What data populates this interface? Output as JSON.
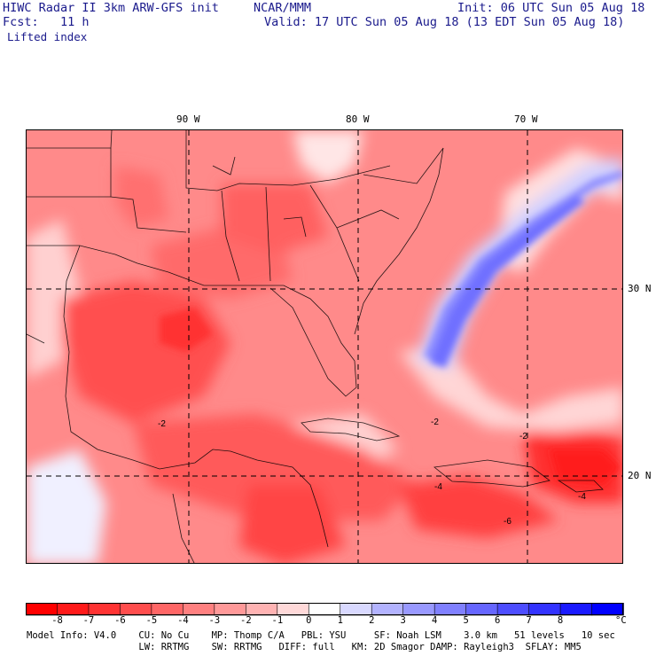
{
  "header": {
    "left_line1": "HIWC Radar II 3km ARW-GFS init",
    "center_line1": "NCAR/MMM",
    "right_line1": "Init: 06 UTC Sun 05 Aug 18",
    "left_line2": "Fcst:   11 h",
    "right_line2": "Valid: 17 UTC Sun 05 Aug 18 (13 EDT Sun 05 Aug 18)",
    "field_name": "Lifted index"
  },
  "map": {
    "lon_labels": [
      "90 W",
      "80 W",
      "70 W"
    ],
    "lat_labels": [
      "30 N",
      "20 N"
    ],
    "contour_labels": [
      "-2",
      "-2",
      "-2",
      "-4",
      "-4",
      "-6"
    ]
  },
  "colorbar": {
    "ticks": [
      "-8",
      "-7",
      "-6",
      "-5",
      "-4",
      "-3",
      "-2",
      "-1",
      "0",
      "1",
      "2",
      "3",
      "4",
      "5",
      "6",
      "7",
      "8"
    ],
    "unit": "°C",
    "colors": [
      "#ff0000",
      "#ff1a1a",
      "#ff3333",
      "#ff4d4d",
      "#ff6666",
      "#ff8080",
      "#ff9999",
      "#ffb3b3",
      "#ffd9d9",
      "#ffffff",
      "#d9d9ff",
      "#b3b3ff",
      "#9999ff",
      "#8080ff",
      "#6666ff",
      "#4d4dff",
      "#3333ff",
      "#1a1aff",
      "#0000ff"
    ]
  },
  "footer": {
    "line1": "Model Info: V4.0    CU: No Cu    MP: Thomp C/A   PBL: YSU     SF: Noah LSM    3.0 km   51 levels   10 sec",
    "line2": "                    LW: RRTMG    SW: RRTMG   DIFF: full   KM: 2D Smagor DAMP: Rayleigh3  SFLAY: MM5"
  }
}
